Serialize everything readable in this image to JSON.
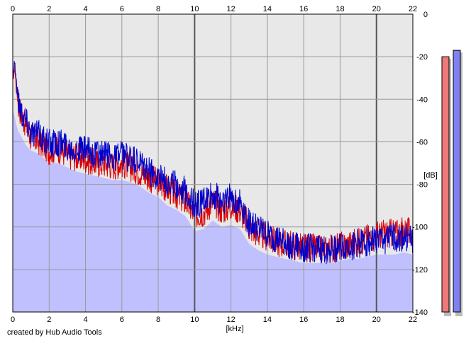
{
  "credit": "created by Hub Audio Tools",
  "chart_data": {
    "type": "line",
    "xlabel": "[kHz]",
    "ylabel": "[dB]",
    "xlim": [
      0,
      22
    ],
    "ylim": [
      -140,
      0
    ],
    "x_ticks": [
      "0",
      "2",
      "4",
      "6",
      "8",
      "10",
      "12",
      "14",
      "16",
      "18",
      "20",
      "22"
    ],
    "y_ticks": [
      "0",
      "-20",
      "-40",
      "-60",
      "-80",
      "-100",
      "-120",
      "-140"
    ],
    "grid": true,
    "x_major_gridlines": [
      10,
      20
    ],
    "series": [
      {
        "color": "#dd0000",
        "style": "line",
        "x": [
          0,
          0.1,
          0.2,
          0.3,
          0.5,
          0.75,
          1,
          1.5,
          2,
          2.5,
          3,
          3.5,
          4,
          4.5,
          5,
          5.5,
          6,
          6.5,
          7,
          7.5,
          8,
          8.5,
          9,
          9.5,
          10,
          10.5,
          11,
          11.5,
          12,
          12.5,
          13,
          13.5,
          14,
          14.5,
          15,
          15.5,
          16,
          16.5,
          17,
          17.5,
          18,
          18.5,
          19,
          19.5,
          20,
          20.5,
          21,
          21.5,
          22
        ],
        "y": [
          -30,
          -25,
          -35,
          -42,
          -48,
          -52,
          -58,
          -60,
          -64,
          -63,
          -66,
          -67,
          -68,
          -70,
          -70,
          -71,
          -70,
          -72,
          -74,
          -77,
          -79,
          -82,
          -85,
          -88,
          -94,
          -93,
          -88,
          -92,
          -90,
          -92,
          -100,
          -103,
          -105,
          -107,
          -108,
          -109,
          -110,
          -110,
          -111,
          -110,
          -109,
          -108,
          -107,
          -105,
          -104,
          -103,
          -103,
          -102,
          -103
        ]
      },
      {
        "color": "#0000cc",
        "style": "line",
        "x": [
          0,
          0.1,
          0.2,
          0.3,
          0.5,
          0.75,
          1,
          1.5,
          2,
          2.5,
          3,
          3.5,
          4,
          4.5,
          5,
          5.5,
          6,
          6.5,
          7,
          7.5,
          8,
          8.5,
          9,
          9.5,
          10,
          10.5,
          11,
          11.5,
          12,
          12.5,
          13,
          13.5,
          14,
          14.5,
          15,
          15.5,
          16,
          16.5,
          17,
          17.5,
          18,
          18.5,
          19,
          19.5,
          20,
          20.5,
          21,
          21.5,
          22
        ],
        "y": [
          -28,
          -22,
          -32,
          -40,
          -46,
          -50,
          -55,
          -57,
          -61,
          -60,
          -62,
          -63,
          -64,
          -66,
          -66,
          -67,
          -66,
          -68,
          -71,
          -74,
          -76,
          -79,
          -80,
          -83,
          -90,
          -88,
          -85,
          -88,
          -86,
          -88,
          -98,
          -101,
          -104,
          -106,
          -108,
          -109,
          -110,
          -110,
          -111,
          -110,
          -110,
          -109,
          -108,
          -107,
          -106,
          -106,
          -105,
          -105,
          -106
        ]
      },
      {
        "color": "#c0c0ff",
        "style": "area",
        "x": [
          0,
          0.1,
          0.2,
          0.3,
          0.5,
          0.75,
          1,
          1.5,
          2,
          2.5,
          3,
          3.5,
          4,
          4.5,
          5,
          5.5,
          6,
          6.5,
          7,
          7.5,
          8,
          8.5,
          9,
          9.5,
          10,
          10.5,
          11,
          11.5,
          12,
          12.5,
          13,
          13.5,
          14,
          14.5,
          15,
          15.5,
          16,
          16.5,
          17,
          17.5,
          18,
          18.5,
          19,
          19.5,
          20,
          20.5,
          21,
          21.5,
          22
        ],
        "y": [
          -45,
          -48,
          -52,
          -55,
          -58,
          -62,
          -64,
          -66,
          -70,
          -70,
          -72,
          -74,
          -75,
          -76,
          -77,
          -78,
          -78,
          -79,
          -81,
          -84,
          -86,
          -90,
          -92,
          -95,
          -102,
          -101,
          -97,
          -100,
          -99,
          -101,
          -108,
          -111,
          -113,
          -114,
          -115,
          -116,
          -117,
          -117,
          -117,
          -117,
          -116,
          -115,
          -115,
          -114,
          -113,
          -113,
          -113,
          -112,
          -113
        ]
      }
    ],
    "level_meters": [
      {
        "color": "#f07878",
        "value": -20
      },
      {
        "color": "#8080f0",
        "value": -17
      }
    ]
  }
}
